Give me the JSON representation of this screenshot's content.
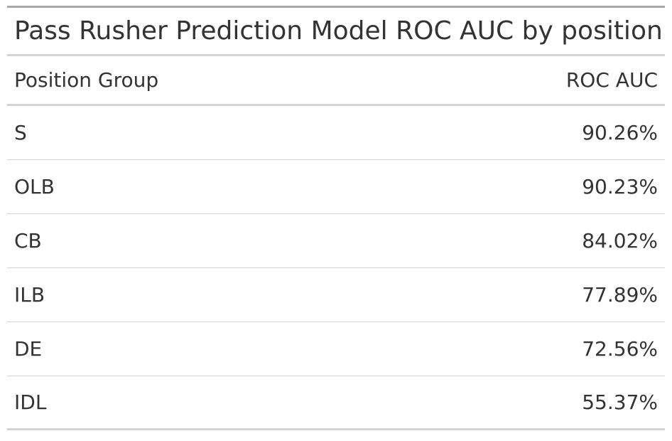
{
  "chart_data": {
    "type": "table",
    "title": "Pass Rusher Prediction Model ROC AUC by position",
    "columns": [
      "Position Group",
      "ROC AUC"
    ],
    "rows": [
      {
        "position": "S",
        "roc_auc": "90.26%"
      },
      {
        "position": "OLB",
        "roc_auc": "90.23%"
      },
      {
        "position": "CB",
        "roc_auc": "84.02%"
      },
      {
        "position": "ILB",
        "roc_auc": "77.89%"
      },
      {
        "position": "DE",
        "roc_auc": "72.56%"
      },
      {
        "position": "IDL",
        "roc_auc": "55.37%"
      }
    ]
  }
}
